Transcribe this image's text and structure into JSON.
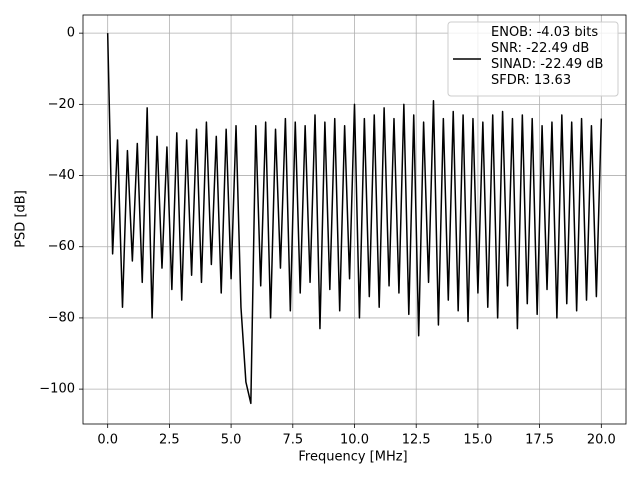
{
  "chart_data": {
    "type": "line",
    "xlabel": "Frequency [MHz]",
    "ylabel": "PSD [dB]",
    "x": [
      0,
      0.2,
      0.4,
      0.6,
      0.8,
      1,
      1.2,
      1.4,
      1.6,
      1.8,
      2,
      2.2,
      2.4,
      2.6,
      2.8,
      3,
      3.2,
      3.4,
      3.6,
      3.8,
      4,
      4.2,
      4.4,
      4.6,
      4.8,
      5,
      5.2,
      5.4,
      5.6,
      5.8,
      6,
      6.2,
      6.4,
      6.6,
      6.8,
      7,
      7.2,
      7.4,
      7.6,
      7.8,
      8,
      8.2,
      8.4,
      8.6,
      8.8,
      9,
      9.2,
      9.4,
      9.6,
      9.8,
      10,
      10.2,
      10.4,
      10.6,
      10.8,
      11,
      11.2,
      11.4,
      11.6,
      11.8,
      12,
      12.2,
      12.4,
      12.6,
      12.8,
      13,
      13.2,
      13.4,
      13.6,
      13.8,
      14,
      14.2,
      14.4,
      14.6,
      14.8,
      15,
      15.2,
      15.4,
      15.6,
      15.8,
      16,
      16.2,
      16.4,
      16.6,
      16.8,
      17,
      17.2,
      17.4,
      17.6,
      17.8,
      18,
      18.2,
      18.4,
      18.6,
      18.8,
      19,
      19.2,
      19.4,
      19.6,
      19.8,
      20
    ],
    "series": [
      {
        "name": "ENOB: -4.03 bits\nSNR: -22.49 dB\nSINAD: -22.49 dB\nSFDR: 13.63",
        "color": "#000000",
        "values": [
          0,
          -62,
          -30,
          -77,
          -33,
          -64,
          -31,
          -70,
          -21,
          -80,
          -29,
          -66,
          -32,
          -72,
          -28,
          -75,
          -30,
          -68,
          -27,
          -70,
          -25,
          -65,
          -29,
          -73,
          -27,
          -69,
          -26,
          -77,
          -98,
          -104,
          -26,
          -71,
          -25,
          -80,
          -27,
          -66,
          -24,
          -78,
          -25,
          -73,
          -26,
          -70,
          -23,
          -83,
          -25,
          -72,
          -24,
          -78,
          -26,
          -69,
          -20,
          -80,
          -24,
          -74,
          -23,
          -77,
          -21,
          -71,
          -24,
          -73,
          -20,
          -79,
          -23,
          -85,
          -25,
          -70,
          -19,
          -82,
          -24,
          -75,
          -22,
          -78,
          -23,
          -81,
          -24,
          -73,
          -25,
          -77,
          -23,
          -80,
          -22,
          -71,
          -24,
          -83,
          -23,
          -76,
          -24,
          -79,
          -26,
          -72,
          -25,
          -80,
          -23,
          -76,
          -25,
          -78,
          -24,
          -75,
          -26,
          -74,
          -24
        ]
      }
    ],
    "xlim": [
      -1.0,
      21.0
    ],
    "ylim": [
      -109.8,
      5.1
    ],
    "xticks": [
      {
        "value": 0,
        "label": "0.0"
      },
      {
        "value": 2.5,
        "label": "2.5"
      },
      {
        "value": 5,
        "label": "5.0"
      },
      {
        "value": 7.5,
        "label": "7.5"
      },
      {
        "value": 10,
        "label": "10.0"
      },
      {
        "value": 12.5,
        "label": "12.5"
      },
      {
        "value": 15,
        "label": "15.0"
      },
      {
        "value": 17.5,
        "label": "17.5"
      },
      {
        "value": 20,
        "label": "20.0"
      }
    ],
    "yticks": [
      0,
      {
        "value": -20,
        "label": "−20"
      },
      {
        "value": -40,
        "label": "−40"
      },
      {
        "value": -60,
        "label": "−60"
      },
      {
        "value": -80,
        "label": "−80"
      },
      {
        "value": -100,
        "label": "−100"
      }
    ],
    "grid": true,
    "legend": "upper right"
  }
}
